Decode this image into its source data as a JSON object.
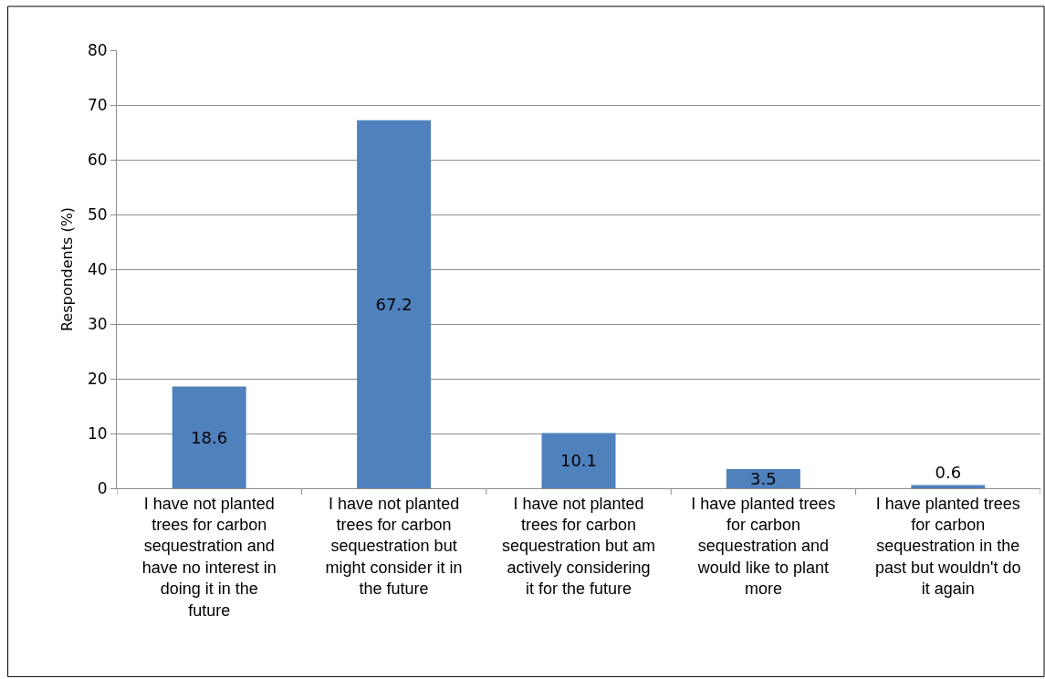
{
  "chart_data": {
    "type": "bar",
    "ylabel": "Respondents (%)",
    "categories": [
      "I have not planted trees for carbon sequestration and have no interest in doing it in the future",
      "I have not planted trees for carbon sequestration but might consider it in the future",
      "I have not planted trees for carbon sequestration but am actively considering it for the future",
      "I have planted trees for carbon sequestration and would like to plant more",
      "I have planted trees for carbon sequestration in the past but wouldn't do it again"
    ],
    "values": [
      18.6,
      67.2,
      10.1,
      3.5,
      0.6
    ],
    "color": "#4f81bd",
    "data_labels": true,
    "ylim": [
      0,
      80
    ],
    "yticks": [
      0,
      10,
      20,
      30,
      40,
      50,
      60,
      70,
      80
    ],
    "grid": "y"
  }
}
